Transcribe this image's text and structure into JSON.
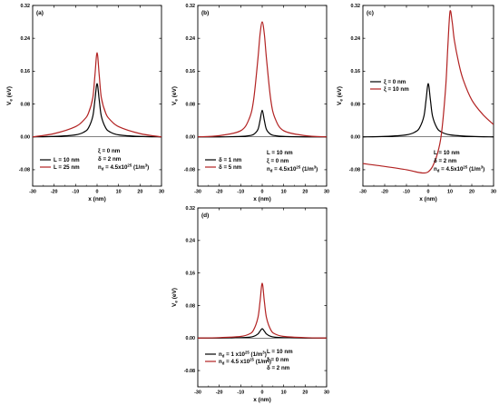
{
  "chart_data": [
    {
      "type": "line",
      "panel_label": "(a)",
      "xlabel": "x (nm)",
      "ylabel": "V_e (eV)",
      "xlim": [
        -30,
        30
      ],
      "ylim": [
        -0.12,
        0.32
      ],
      "x_ticks": [
        "-30",
        "-20",
        "-10",
        "0",
        "10",
        "20",
        "30"
      ],
      "y_ticks": [
        "-0.08",
        "0.00",
        "0.08",
        "0.16",
        "0.24",
        "0.32"
      ],
      "series": [
        {
          "name": "L = 10 nm",
          "color": "#000000",
          "x": [
            -30,
            -20,
            -10,
            -6,
            -4,
            -2,
            -1,
            0,
            1,
            2,
            4,
            6,
            10,
            20,
            30
          ],
          "y": [
            0.0,
            0.001,
            0.005,
            0.012,
            0.022,
            0.05,
            0.09,
            0.13,
            0.09,
            0.05,
            0.022,
            0.012,
            0.005,
            0.001,
            0.0
          ]
        },
        {
          "name": "L = 25 nm",
          "color": "#b22222",
          "x": [
            -30,
            -20,
            -10,
            -6,
            -4,
            -2,
            -1,
            0,
            1,
            2,
            4,
            6,
            10,
            20,
            30
          ],
          "y": [
            0.0,
            0.008,
            0.025,
            0.042,
            0.058,
            0.095,
            0.15,
            0.205,
            0.15,
            0.095,
            0.058,
            0.042,
            0.025,
            0.008,
            0.0
          ]
        }
      ],
      "params": [
        "ξ = 0 nm",
        "δ = 2 nm",
        "n_d = 4.5x10^25 (1/m^3)"
      ]
    },
    {
      "type": "line",
      "panel_label": "(b)",
      "xlabel": "x (nm)",
      "ylabel": "V_e (eV)",
      "xlim": [
        -30,
        30
      ],
      "ylim": [
        -0.12,
        0.32
      ],
      "x_ticks": [
        "-30",
        "-20",
        "-10",
        "0",
        "10",
        "20",
        "30"
      ],
      "y_ticks": [
        "-0.08",
        "0.00",
        "0.08",
        "0.16",
        "0.24",
        "0.32"
      ],
      "series": [
        {
          "name": "δ = 1 nm",
          "color": "#000000",
          "x": [
            -30,
            -20,
            -10,
            -6,
            -4,
            -2,
            -1,
            0,
            1,
            2,
            4,
            6,
            10,
            20,
            30
          ],
          "y": [
            0.0,
            0.0,
            0.001,
            0.003,
            0.006,
            0.018,
            0.04,
            0.065,
            0.04,
            0.018,
            0.006,
            0.003,
            0.001,
            0.0,
            0.0
          ]
        },
        {
          "name": "δ = 5 nm",
          "color": "#b22222",
          "x": [
            -30,
            -20,
            -10,
            -6,
            -4,
            -2,
            -1,
            0,
            1,
            2,
            4,
            6,
            10,
            20,
            30
          ],
          "y": [
            0.0,
            0.003,
            0.015,
            0.045,
            0.09,
            0.19,
            0.25,
            0.28,
            0.25,
            0.19,
            0.09,
            0.045,
            0.015,
            0.003,
            0.0
          ]
        }
      ],
      "params": [
        "L = 10 nm",
        "ξ = 0 nm",
        "n_d = 4.5x10^25 (1/m^3)"
      ]
    },
    {
      "type": "line",
      "panel_label": "(c)",
      "xlabel": "x (nm)",
      "ylabel": "V_e (eV)",
      "xlim": [
        -30,
        30
      ],
      "ylim": [
        -0.12,
        0.32
      ],
      "x_ticks": [
        "-30",
        "-20",
        "-10",
        "0",
        "10",
        "20",
        "30"
      ],
      "y_ticks": [
        "-0.08",
        "0.00",
        "0.08",
        "0.16",
        "0.24",
        "0.32"
      ],
      "series": [
        {
          "name": "ξ = 0 nm",
          "color": "#000000",
          "x": [
            -30,
            -20,
            -10,
            -6,
            -4,
            -2,
            -1,
            0,
            1,
            2,
            4,
            6,
            10,
            20,
            30
          ],
          "y": [
            0.0,
            0.001,
            0.005,
            0.012,
            0.022,
            0.05,
            0.09,
            0.13,
            0.09,
            0.05,
            0.022,
            0.012,
            0.005,
            0.001,
            0.0
          ]
        },
        {
          "name": "ξ = 10 nm",
          "color": "#b22222",
          "x": [
            -30,
            -20,
            -10,
            -5,
            -2,
            0,
            2,
            4,
            6,
            8,
            9,
            10,
            11,
            12,
            14,
            16,
            20,
            25,
            30
          ],
          "y": [
            -0.065,
            -0.072,
            -0.08,
            -0.086,
            -0.088,
            -0.085,
            -0.072,
            -0.045,
            0.005,
            0.12,
            0.22,
            0.305,
            0.28,
            0.235,
            0.18,
            0.14,
            0.09,
            0.055,
            0.03
          ]
        }
      ],
      "params": [
        "L = 10 nm",
        "δ = 2 nm",
        "n_d = 4.5x10^25 (1/m^3)"
      ]
    },
    {
      "type": "line",
      "panel_label": "(d)",
      "xlabel": "x (nm)",
      "ylabel": "V_e (eV)",
      "xlim": [
        -30,
        30
      ],
      "ylim": [
        -0.12,
        0.32
      ],
      "x_ticks": [
        "-30",
        "-20",
        "-10",
        "0",
        "10",
        "20",
        "30"
      ],
      "y_ticks": [
        "-0.08",
        "0.00",
        "0.08",
        "0.16",
        "0.24",
        "0.32"
      ],
      "series": [
        {
          "name": "n_d = 1 x10^25 (1/m^3)",
          "color": "#000000",
          "x": [
            -30,
            -20,
            -10,
            -6,
            -4,
            -2,
            -1,
            0,
            1,
            2,
            4,
            6,
            10,
            20,
            30
          ],
          "y": [
            0.0,
            0.0,
            0.001,
            0.002,
            0.004,
            0.01,
            0.017,
            0.023,
            0.017,
            0.01,
            0.004,
            0.002,
            0.001,
            0.0,
            0.0
          ]
        },
        {
          "name": "n_d = 4.5 x10^25 (1/m^3)",
          "color": "#b22222",
          "x": [
            -30,
            -20,
            -10,
            -6,
            -4,
            -2,
            -1,
            0,
            1,
            2,
            4,
            6,
            10,
            20,
            30
          ],
          "y": [
            0.0,
            0.001,
            0.004,
            0.01,
            0.02,
            0.05,
            0.09,
            0.135,
            0.09,
            0.05,
            0.02,
            0.01,
            0.004,
            0.001,
            0.0
          ]
        }
      ],
      "params": [
        "L = 10 nm",
        "ξ = 0 nm",
        "δ = 2 nm"
      ]
    }
  ]
}
